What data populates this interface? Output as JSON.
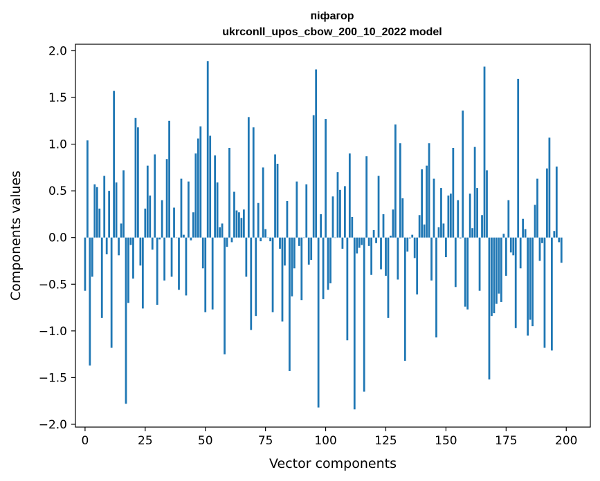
{
  "chart_data": {
    "type": "bar",
    "title_line1": "пiфагор",
    "title_line2": "ukrconll_upos_cbow_200_10_2022 model",
    "xlabel": "Vector components",
    "ylabel": "Components values",
    "xlim": [
      -4,
      210
    ],
    "ylim": [
      -2.03,
      2.07
    ],
    "xticks": [
      0,
      25,
      50,
      75,
      100,
      125,
      150,
      175,
      200
    ],
    "yticks": [
      -2.0,
      -1.5,
      -1.0,
      -0.5,
      0.0,
      0.5,
      1.0,
      1.5,
      2.0
    ],
    "ytick_labels": [
      "−2.0",
      "−1.5",
      "−1.0",
      "−0.5",
      "0.0",
      "0.5",
      "1.0",
      "1.5",
      "2.0"
    ],
    "bar_color": "#1f77b4",
    "grid": false,
    "values": [
      -0.57,
      1.04,
      -1.37,
      -0.42,
      0.57,
      0.54,
      0.31,
      -0.86,
      0.66,
      -0.18,
      0.5,
      -1.18,
      1.57,
      0.59,
      -0.19,
      0.15,
      0.72,
      -1.78,
      -0.7,
      -0.08,
      -0.44,
      1.28,
      1.18,
      -0.3,
      -0.76,
      0.31,
      0.77,
      0.45,
      -0.13,
      0.89,
      -0.72,
      -0.02,
      0.4,
      -0.46,
      0.84,
      1.25,
      -0.42,
      0.32,
      0.0,
      -0.56,
      0.63,
      0.03,
      -0.62,
      0.6,
      -0.03,
      0.27,
      0.9,
      1.06,
      1.19,
      -0.33,
      -0.8,
      1.89,
      1.09,
      -0.77,
      0.88,
      0.59,
      0.11,
      0.15,
      -1.25,
      -0.1,
      0.96,
      -0.05,
      0.49,
      0.29,
      0.27,
      0.21,
      0.3,
      -0.42,
      1.29,
      -0.99,
      1.18,
      -0.84,
      0.37,
      -0.04,
      0.75,
      0.09,
      0.0,
      -0.04,
      -0.8,
      0.89,
      0.79,
      -0.12,
      -0.9,
      -0.3,
      0.39,
      -1.43,
      -0.63,
      -0.33,
      0.6,
      -0.09,
      -0.67,
      0.0,
      0.57,
      -0.29,
      -0.24,
      1.31,
      1.8,
      -1.82,
      0.25,
      -0.66,
      1.27,
      -0.56,
      -0.49,
      0.44,
      0.0,
      0.7,
      0.51,
      -0.12,
      0.55,
      -1.1,
      0.9,
      0.22,
      -1.84,
      -0.17,
      -0.11,
      -0.08,
      -1.65,
      0.87,
      -0.09,
      -0.4,
      0.08,
      -0.06,
      0.66,
      -0.34,
      0.25,
      -0.41,
      -0.86,
      0.02,
      0.3,
      1.21,
      -0.45,
      1.01,
      0.42,
      -1.32,
      -0.15,
      -0.01,
      0.03,
      -0.22,
      -0.61,
      0.24,
      0.73,
      0.14,
      0.77,
      1.01,
      -0.46,
      0.63,
      -1.07,
      0.11,
      0.53,
      0.15,
      -0.21,
      0.45,
      0.47,
      0.96,
      -0.53,
      0.4,
      -0.01,
      1.36,
      -0.74,
      -0.77,
      0.47,
      0.1,
      0.97,
      0.53,
      -0.57,
      0.24,
      1.83,
      0.72,
      -1.52,
      -0.84,
      -0.81,
      -0.71,
      -0.6,
      -0.69,
      0.04,
      -0.41,
      0.4,
      -0.16,
      -0.19,
      -0.97,
      1.7,
      -0.33,
      0.2,
      0.09,
      -1.05,
      -0.88,
      -0.95,
      0.35,
      0.63,
      -0.25,
      -0.06,
      -1.18,
      0.74,
      1.07,
      -1.21,
      0.07,
      0.76,
      -0.05,
      -0.27
    ]
  }
}
